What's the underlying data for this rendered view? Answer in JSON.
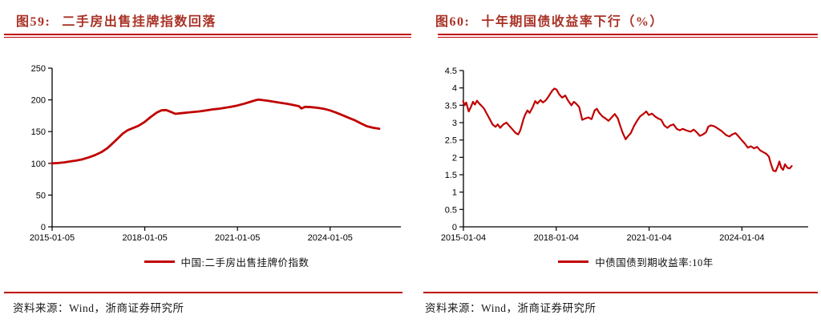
{
  "page": {
    "background": "#FFFFFF"
  },
  "colors": {
    "accent_red": "#C00000",
    "title_red": "#A93226",
    "axis_black": "#000000",
    "text_dark": "#1A1A1A"
  },
  "figures": [
    {
      "fig_label": "图59:",
      "title": "二手房出售挂牌指数回落",
      "source": "资料来源：Wind，浙商证券研究所"
    },
    {
      "fig_label": "图60:",
      "title": "十年期国债收益率下行（%）",
      "source": "资料来源：Wind，浙商证券研究所"
    }
  ],
  "chart_data": [
    {
      "type": "line",
      "title": "二手房出售挂牌指数回落",
      "xlabel": "",
      "ylabel": "",
      "xlim": [
        2015.01,
        2026.3
      ],
      "ylim": [
        0,
        250
      ],
      "grid": false,
      "legend_position": "bottom",
      "x_ticks": [
        {
          "label": "2015-01-05",
          "year": 2015.01
        },
        {
          "label": "2018-01-05",
          "year": 2018.01
        },
        {
          "label": "2021-01-05",
          "year": 2021.01
        },
        {
          "label": "2024-01-05",
          "year": 2024.01
        }
      ],
      "y_ticks": [
        0,
        50,
        100,
        150,
        200,
        250
      ],
      "series": [
        {
          "name": "中国:二手房出售挂牌价指数",
          "color": "#C00000",
          "stroke_width": 2.8,
          "points": [
            [
              2015.0,
              100
            ],
            [
              2015.2,
              100.5
            ],
            [
              2015.4,
              101.5
            ],
            [
              2015.6,
              103
            ],
            [
              2015.8,
              104.5
            ],
            [
              2016.0,
              106.5
            ],
            [
              2016.2,
              109.5
            ],
            [
              2016.4,
              113
            ],
            [
              2016.6,
              117.5
            ],
            [
              2016.8,
              124
            ],
            [
              2017.0,
              133
            ],
            [
              2017.15,
              140
            ],
            [
              2017.3,
              147
            ],
            [
              2017.45,
              152
            ],
            [
              2017.6,
              155
            ],
            [
              2017.8,
              159
            ],
            [
              2018.0,
              165
            ],
            [
              2018.2,
              173
            ],
            [
              2018.4,
              180
            ],
            [
              2018.55,
              183.5
            ],
            [
              2018.7,
              184
            ],
            [
              2018.85,
              181
            ],
            [
              2019.0,
              178
            ],
            [
              2019.2,
              179
            ],
            [
              2019.4,
              180
            ],
            [
              2019.6,
              181
            ],
            [
              2019.8,
              182
            ],
            [
              2020.0,
              183.5
            ],
            [
              2020.2,
              185
            ],
            [
              2020.4,
              186
            ],
            [
              2020.6,
              187.5
            ],
            [
              2020.8,
              189
            ],
            [
              2021.0,
              191
            ],
            [
              2021.2,
              193.5
            ],
            [
              2021.4,
              196.5
            ],
            [
              2021.6,
              199.5
            ],
            [
              2021.7,
              200.5
            ],
            [
              2021.85,
              199.5
            ],
            [
              2022.0,
              198.5
            ],
            [
              2022.2,
              197
            ],
            [
              2022.4,
              195.5
            ],
            [
              2022.6,
              194
            ],
            [
              2022.8,
              192
            ],
            [
              2023.0,
              190
            ],
            [
              2023.08,
              186.5
            ],
            [
              2023.2,
              189
            ],
            [
              2023.4,
              188.5
            ],
            [
              2023.6,
              187.5
            ],
            [
              2023.8,
              186
            ],
            [
              2024.0,
              183.5
            ],
            [
              2024.2,
              180
            ],
            [
              2024.4,
              176
            ],
            [
              2024.6,
              172
            ],
            [
              2024.8,
              168
            ],
            [
              2025.0,
              163
            ],
            [
              2025.2,
              158.5
            ],
            [
              2025.4,
              156
            ],
            [
              2025.6,
              154.5
            ]
          ]
        }
      ]
    },
    {
      "type": "line",
      "title": "十年期国债收益率下行（%）",
      "xlabel": "",
      "ylabel": "",
      "xlim": [
        2015.01,
        2026.15
      ],
      "ylim": [
        0,
        4.5
      ],
      "grid": false,
      "legend_position": "bottom",
      "x_ticks": [
        {
          "label": "2015-01-04",
          "year": 2015.01
        },
        {
          "label": "2018-01-04",
          "year": 2018.01
        },
        {
          "label": "2021-01-04",
          "year": 2021.01
        },
        {
          "label": "2024-01-04",
          "year": 2024.01
        }
      ],
      "y_ticks": [
        0,
        0.5,
        1,
        1.5,
        2,
        2.5,
        3,
        3.5,
        4,
        4.5
      ],
      "series": [
        {
          "name": "中债国债到期收益率:10年",
          "color": "#C00000",
          "stroke_width": 2.2,
          "points": [
            [
              2015.0,
              3.62
            ],
            [
              2015.05,
              3.5
            ],
            [
              2015.1,
              3.58
            ],
            [
              2015.18,
              3.32
            ],
            [
              2015.25,
              3.45
            ],
            [
              2015.32,
              3.6
            ],
            [
              2015.38,
              3.52
            ],
            [
              2015.45,
              3.63
            ],
            [
              2015.52,
              3.55
            ],
            [
              2015.6,
              3.48
            ],
            [
              2015.68,
              3.4
            ],
            [
              2015.75,
              3.28
            ],
            [
              2015.85,
              3.12
            ],
            [
              2015.95,
              2.95
            ],
            [
              2016.05,
              2.88
            ],
            [
              2016.12,
              2.95
            ],
            [
              2016.2,
              2.85
            ],
            [
              2016.3,
              2.95
            ],
            [
              2016.4,
              3.0
            ],
            [
              2016.5,
              2.9
            ],
            [
              2016.6,
              2.8
            ],
            [
              2016.7,
              2.7
            ],
            [
              2016.78,
              2.66
            ],
            [
              2016.85,
              2.78
            ],
            [
              2016.95,
              3.1
            ],
            [
              2017.0,
              3.22
            ],
            [
              2017.08,
              3.35
            ],
            [
              2017.15,
              3.28
            ],
            [
              2017.25,
              3.45
            ],
            [
              2017.33,
              3.62
            ],
            [
              2017.4,
              3.55
            ],
            [
              2017.5,
              3.65
            ],
            [
              2017.58,
              3.58
            ],
            [
              2017.68,
              3.65
            ],
            [
              2017.78,
              3.78
            ],
            [
              2017.88,
              3.92
            ],
            [
              2017.95,
              3.98
            ],
            [
              2018.02,
              3.95
            ],
            [
              2018.1,
              3.82
            ],
            [
              2018.2,
              3.72
            ],
            [
              2018.3,
              3.78
            ],
            [
              2018.4,
              3.62
            ],
            [
              2018.5,
              3.5
            ],
            [
              2018.58,
              3.6
            ],
            [
              2018.65,
              3.55
            ],
            [
              2018.75,
              3.45
            ],
            [
              2018.85,
              3.08
            ],
            [
              2018.95,
              3.12
            ],
            [
              2019.05,
              3.15
            ],
            [
              2019.15,
              3.1
            ],
            [
              2019.25,
              3.35
            ],
            [
              2019.32,
              3.4
            ],
            [
              2019.4,
              3.28
            ],
            [
              2019.5,
              3.18
            ],
            [
              2019.6,
              3.12
            ],
            [
              2019.7,
              3.05
            ],
            [
              2019.8,
              3.15
            ],
            [
              2019.9,
              3.25
            ],
            [
              2020.0,
              3.12
            ],
            [
              2020.08,
              2.9
            ],
            [
              2020.15,
              2.72
            ],
            [
              2020.25,
              2.52
            ],
            [
              2020.32,
              2.6
            ],
            [
              2020.42,
              2.7
            ],
            [
              2020.52,
              2.9
            ],
            [
              2020.62,
              3.05
            ],
            [
              2020.72,
              3.18
            ],
            [
              2020.82,
              3.25
            ],
            [
              2020.92,
              3.32
            ],
            [
              2021.0,
              3.22
            ],
            [
              2021.1,
              3.26
            ],
            [
              2021.2,
              3.18
            ],
            [
              2021.3,
              3.12
            ],
            [
              2021.4,
              3.08
            ],
            [
              2021.5,
              2.92
            ],
            [
              2021.6,
              2.85
            ],
            [
              2021.7,
              2.92
            ],
            [
              2021.8,
              2.95
            ],
            [
              2021.9,
              2.82
            ],
            [
              2022.0,
              2.78
            ],
            [
              2022.1,
              2.82
            ],
            [
              2022.2,
              2.78
            ],
            [
              2022.35,
              2.74
            ],
            [
              2022.45,
              2.8
            ],
            [
              2022.55,
              2.72
            ],
            [
              2022.65,
              2.62
            ],
            [
              2022.75,
              2.66
            ],
            [
              2022.85,
              2.72
            ],
            [
              2022.92,
              2.88
            ],
            [
              2023.0,
              2.92
            ],
            [
              2023.1,
              2.9
            ],
            [
              2023.2,
              2.85
            ],
            [
              2023.35,
              2.76
            ],
            [
              2023.5,
              2.64
            ],
            [
              2023.6,
              2.6
            ],
            [
              2023.7,
              2.66
            ],
            [
              2023.8,
              2.7
            ],
            [
              2023.9,
              2.6
            ],
            [
              2024.0,
              2.5
            ],
            [
              2024.1,
              2.4
            ],
            [
              2024.2,
              2.28
            ],
            [
              2024.3,
              2.32
            ],
            [
              2024.4,
              2.26
            ],
            [
              2024.5,
              2.3
            ],
            [
              2024.6,
              2.2
            ],
            [
              2024.7,
              2.15
            ],
            [
              2024.8,
              2.1
            ],
            [
              2024.88,
              2.02
            ],
            [
              2024.95,
              1.8
            ],
            [
              2025.02,
              1.62
            ],
            [
              2025.1,
              1.6
            ],
            [
              2025.17,
              1.75
            ],
            [
              2025.22,
              1.88
            ],
            [
              2025.28,
              1.7
            ],
            [
              2025.34,
              1.64
            ],
            [
              2025.4,
              1.8
            ],
            [
              2025.48,
              1.7
            ],
            [
              2025.55,
              1.68
            ],
            [
              2025.62,
              1.75
            ]
          ]
        }
      ]
    }
  ]
}
